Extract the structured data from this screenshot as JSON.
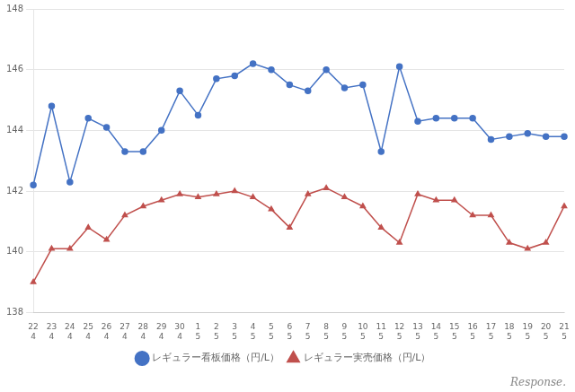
{
  "chart_data": {
    "type": "line",
    "categories": [
      [
        "22",
        "4"
      ],
      [
        "23",
        "4"
      ],
      [
        "24",
        "4"
      ],
      [
        "25",
        "4"
      ],
      [
        "26",
        "4"
      ],
      [
        "27",
        "4"
      ],
      [
        "28",
        "4"
      ],
      [
        "29",
        "4"
      ],
      [
        "30",
        "4"
      ],
      [
        "1",
        "5"
      ],
      [
        "2",
        "5"
      ],
      [
        "3",
        "5"
      ],
      [
        "4",
        "5"
      ],
      [
        "5",
        "5"
      ],
      [
        "6",
        "5"
      ],
      [
        "7",
        "5"
      ],
      [
        "8",
        "5"
      ],
      [
        "9",
        "5"
      ],
      [
        "10",
        "5"
      ],
      [
        "11",
        "5"
      ],
      [
        "12",
        "5"
      ],
      [
        "13",
        "5"
      ],
      [
        "14",
        "5"
      ],
      [
        "15",
        "5"
      ],
      [
        "16",
        "5"
      ],
      [
        "17",
        "5"
      ],
      [
        "18",
        "5"
      ],
      [
        "19",
        "5"
      ],
      [
        "20",
        "5"
      ],
      [
        "21",
        "5"
      ]
    ],
    "series": [
      {
        "name": "レギュラー看板価格（円/L）",
        "color": "#4472c4",
        "marker": "circle",
        "values": [
          142.2,
          144.8,
          142.3,
          144.4,
          144.1,
          143.3,
          143.3,
          144.0,
          145.3,
          144.5,
          145.7,
          145.8,
          146.2,
          146.0,
          145.5,
          145.3,
          146.0,
          145.4,
          145.5,
          143.3,
          146.1,
          144.3,
          144.4,
          144.4,
          144.4,
          143.7,
          143.8,
          143.9,
          143.8,
          143.8
        ]
      },
      {
        "name": "レギュラー実売価格（円/L）",
        "color": "#c0504d",
        "marker": "triangle",
        "values": [
          139.0,
          140.1,
          140.1,
          140.8,
          140.4,
          141.2,
          141.5,
          141.7,
          141.9,
          141.8,
          141.9,
          142.0,
          141.8,
          141.4,
          140.8,
          141.9,
          142.1,
          141.8,
          141.5,
          140.8,
          140.3,
          141.9,
          141.7,
          141.7,
          141.2,
          141.2,
          140.3,
          140.1,
          140.3,
          141.5
        ]
      }
    ],
    "ylim": [
      138,
      148
    ],
    "yticks": [
      138,
      140,
      142,
      144,
      146,
      148
    ],
    "grid": true,
    "legend": "bottom",
    "annotations": [
      "Response."
    ]
  }
}
